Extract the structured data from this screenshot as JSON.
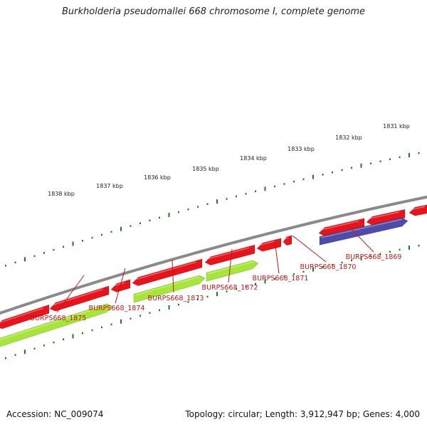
{
  "title": "Burkholderia pseudomallei 668 chromosome I, complete genome",
  "footer": {
    "accession": "Accession: NC_009074",
    "summary": "Topology: circular; Length: 3,912,947 bp; Genes: 4,000"
  },
  "colors": {
    "backbone": "#8a8a8a",
    "tick": "#1f7a1f",
    "forward_cds": "#e8131b",
    "reverse_cds": "#a5e636",
    "reverse_cds_alt": "#4f4ba8",
    "label_text": "#c41717",
    "label_line": "#c41717",
    "scale_text": "#222222"
  },
  "scale_labels": [
    "1831 kbp",
    "1832 kbp",
    "1833 kbp",
    "1834 kbp",
    "1835 kbp",
    "1836 kbp",
    "1837 kbp",
    "1838 kbp"
  ],
  "gene_labels": [
    "BURPS668_1869",
    "BURPS668_1870",
    "BURPS668_1871",
    "BURPS668_1872",
    "BURPS668_1873",
    "BURPS668_1874",
    "BURPS668_1875"
  ]
}
